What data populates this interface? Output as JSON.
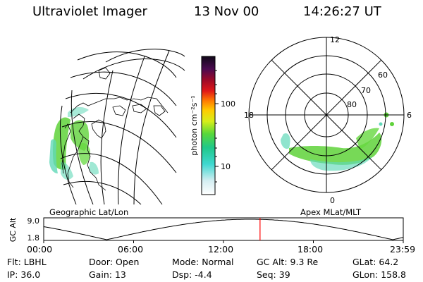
{
  "header": {
    "title": "Ultraviolet Imager",
    "date": "13 Nov 00",
    "time": "14:26:27 UT"
  },
  "colorbar": {
    "unit_label": "photon cm⁻²s⁻¹",
    "ticks": [
      "100",
      "10"
    ]
  },
  "panels": {
    "left_label": "Geographic Lat/Lon",
    "right_label": "Apex MLat/MLT"
  },
  "polar": {
    "mlt_labels": {
      "top": "12",
      "left": "18",
      "right": "6",
      "bottom": "0"
    },
    "lat_labels": [
      "60",
      "70",
      "80"
    ]
  },
  "timeline": {
    "y_axis_label": "GC Alt",
    "y_ticks": [
      "9.0",
      "1.8"
    ],
    "x_ticks": [
      "00:00",
      "06:00",
      "12:00",
      "18:00",
      "23:59"
    ],
    "current_time_hours": 14.44
  },
  "footer": {
    "row1": {
      "filter": {
        "label": "Flt:",
        "value": "LBHL"
      },
      "door": {
        "label": "Door:",
        "value": "Open"
      },
      "mode": {
        "label": "Mode:",
        "value": "Normal"
      },
      "gc_alt": {
        "label": "GC Alt:",
        "value": "9.3 Re"
      },
      "glat": {
        "label": "GLat:",
        "value": "64.2"
      }
    },
    "row2": {
      "ip": {
        "label": "IP:",
        "value": "36.0"
      },
      "gain": {
        "label": "Gain:",
        "value": "13"
      },
      "dsp": {
        "label": "Dsp:",
        "value": "-4.4"
      },
      "seq": {
        "label": "Seq:",
        "value": "39"
      },
      "glon": {
        "label": "GLon:",
        "value": "158.8"
      }
    }
  },
  "colors": {
    "grid": "#000000",
    "current_time_marker": "#ff0000",
    "auroral_green": "#5fd23a",
    "auroral_cyan": "#60d8b8"
  }
}
